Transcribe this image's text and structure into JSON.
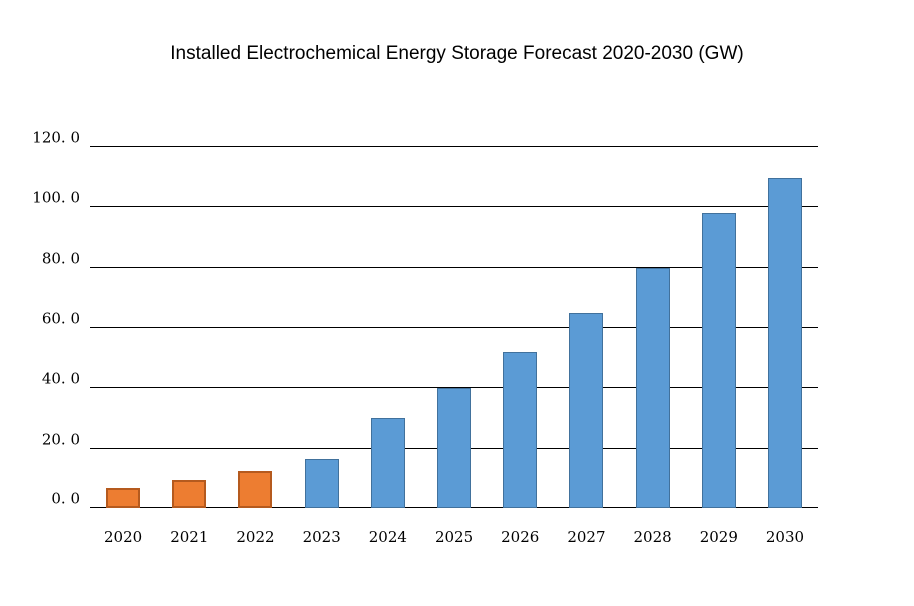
{
  "chart_data": {
    "type": "bar",
    "title": "Installed Electrochemical Energy Storage Forecast 2020-2030 (GW)",
    "xlabel": "",
    "ylabel": "",
    "unit": "GW",
    "categories": [
      "2020",
      "2021",
      "2022",
      "2023",
      "2024",
      "2025",
      "2026",
      "2027",
      "2028",
      "2029",
      "2030"
    ],
    "values": [
      6.5,
      9.4,
      12.4,
      16.3,
      29.8,
      39.9,
      51.6,
      64.8,
      79.7,
      97.7,
      109.5
    ],
    "point_style_keys": [
      "historical",
      "historical",
      "historical",
      "forecast",
      "forecast",
      "forecast",
      "forecast",
      "forecast",
      "forecast",
      "forecast",
      "forecast"
    ],
    "styles": {
      "historical": {
        "fill": "#ED7D31",
        "border": "#B55A1E",
        "border_width": 2
      },
      "forecast": {
        "fill": "#5B9BD5",
        "border": "#41719C",
        "border_width": 1
      }
    },
    "ylim": [
      0,
      120
    ],
    "y_ticks": [
      {
        "value": 0,
        "label": "0. 0"
      },
      {
        "value": 20,
        "label": "20. 0"
      },
      {
        "value": 40,
        "label": "40. 0"
      },
      {
        "value": 60,
        "label": "60. 0"
      },
      {
        "value": 80,
        "label": "80. 0"
      },
      {
        "value": 100,
        "label": "100. 0"
      },
      {
        "value": 120,
        "label": "120. 0"
      }
    ],
    "grid": "horizontal",
    "gridline_color": "#000000",
    "background_color": "#FFFFFF",
    "legend_position": "none"
  }
}
